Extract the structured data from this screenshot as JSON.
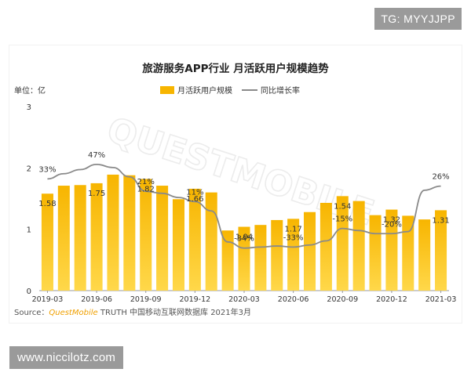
{
  "watermarks": {
    "top": "TG: MYYJJPP",
    "bottom": "www.niccilotz.com"
  },
  "brand_watermark": "QUESTMOBILE",
  "colors": {
    "bar": "#f7b500",
    "bar_light": "#ffd84a",
    "line": "#8a8a8a",
    "axis": "#9a9a9a",
    "text": "#333333",
    "brand": "#f0a000"
  },
  "chart_data": {
    "type": "bar",
    "title": "旅游服务APP行业 月活跃用户规模趋势",
    "unit_label": "单位：亿",
    "legend": {
      "bar": "月活跃用户规模",
      "line": "同比增长率"
    },
    "ylim": [
      0,
      3
    ],
    "yticks": [
      0,
      1,
      2,
      3
    ],
    "x_tick_labels": [
      "2019-03",
      "2019-06",
      "2019-09",
      "2019-12",
      "2020-03",
      "2020-06",
      "2020-09",
      "2020-12",
      "2021-03"
    ],
    "categories": [
      "2019-03",
      "2019-04",
      "2019-05",
      "2019-06",
      "2019-07",
      "2019-08",
      "2019-09",
      "2019-10",
      "2019-11",
      "2019-12",
      "2020-01",
      "2020-02",
      "2020-03",
      "2020-04",
      "2020-05",
      "2020-06",
      "2020-07",
      "2020-08",
      "2020-09",
      "2020-10",
      "2020-11",
      "2020-12",
      "2021-01",
      "2021-02",
      "2021-03"
    ],
    "series": [
      {
        "name": "月活跃用户规模",
        "type": "bar",
        "values": [
          1.58,
          1.71,
          1.72,
          1.75,
          1.89,
          1.88,
          1.82,
          1.71,
          1.49,
          1.66,
          1.6,
          0.98,
          1.04,
          1.07,
          1.15,
          1.17,
          1.28,
          1.43,
          1.54,
          1.46,
          1.23,
          1.32,
          1.22,
          1.16,
          1.31
        ],
        "labels": {
          "0": "1.58",
          "3": "1.75",
          "6": "1.82",
          "9": "1.66",
          "12": "1.04",
          "15": "1.17",
          "18": "1.54",
          "21": "1.32",
          "24": "1.31"
        }
      },
      {
        "name": "同比增长率",
        "type": "line",
        "values": [
          33,
          38,
          42,
          47,
          44,
          35,
          21,
          19,
          15,
          11,
          2,
          -28,
          -34,
          -33,
          -32,
          -33,
          -31,
          -27,
          -15,
          -17,
          -20,
          -20,
          -18,
          22,
          26
        ],
        "labels": {
          "0": "33%",
          "3": "47%",
          "6": "21%",
          "9": "11%",
          "12": "-34%",
          "15": "-33%",
          "18": "-15%",
          "21": "-20%",
          "24": "26%"
        }
      }
    ]
  },
  "source": {
    "prefix": "Source：",
    "brand": "QuestMobile",
    "rest": " TRUTH 中国移动互联网数据库 2021年3月"
  }
}
